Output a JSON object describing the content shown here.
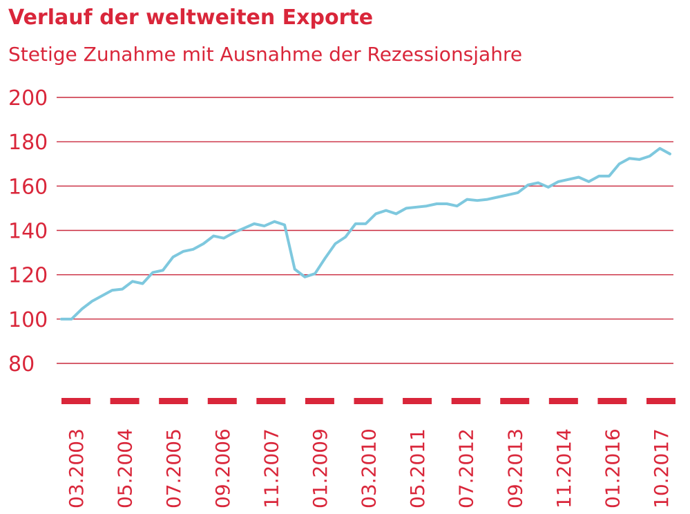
{
  "title": "Verlauf der weltweiten Exporte",
  "subtitle": "Stetige Zunahme mit Ausnahme der Rezessionsjahre",
  "colors": {
    "accent": "#d9263a",
    "line": "#7ec8de",
    "grid": "#c9283c"
  },
  "chart_data": {
    "type": "line",
    "title": "Verlauf der weltweiten Exporte",
    "subtitle": "Stetige Zunahme mit Ausnahme der Rezessionsjahre",
    "xlabel": "",
    "ylabel": "",
    "ylim": [
      80,
      200
    ],
    "yticks": [
      "200",
      "180",
      "160",
      "140",
      "120",
      "100",
      "80"
    ],
    "xtick_labels": [
      "03.2003",
      "05.2004",
      "07.2005",
      "09.2006",
      "11.2007",
      "01.2009",
      "03.2010",
      "05.2011",
      "07.2012",
      "09.2013",
      "11.2014",
      "01.2016",
      "10.2017"
    ],
    "grid": true,
    "legend": false,
    "series": [
      {
        "values": [
          100,
          100,
          104.5,
          108,
          110.5,
          113,
          113.5,
          117,
          116,
          121,
          122,
          128,
          130.5,
          131.5,
          134,
          137.5,
          136.5,
          139,
          141,
          143,
          142,
          144,
          142.5,
          122.5,
          119,
          120.5,
          127.5,
          134,
          137,
          143,
          143,
          147.5,
          149,
          147.5,
          150,
          150.5,
          151,
          152,
          152,
          151,
          154,
          153.5,
          154,
          155,
          156,
          157,
          160.5,
          161.5,
          159.5,
          162,
          163,
          164,
          162,
          164.5,
          164.5,
          170,
          172.5,
          172,
          173.5,
          177,
          174.5
        ]
      }
    ]
  }
}
